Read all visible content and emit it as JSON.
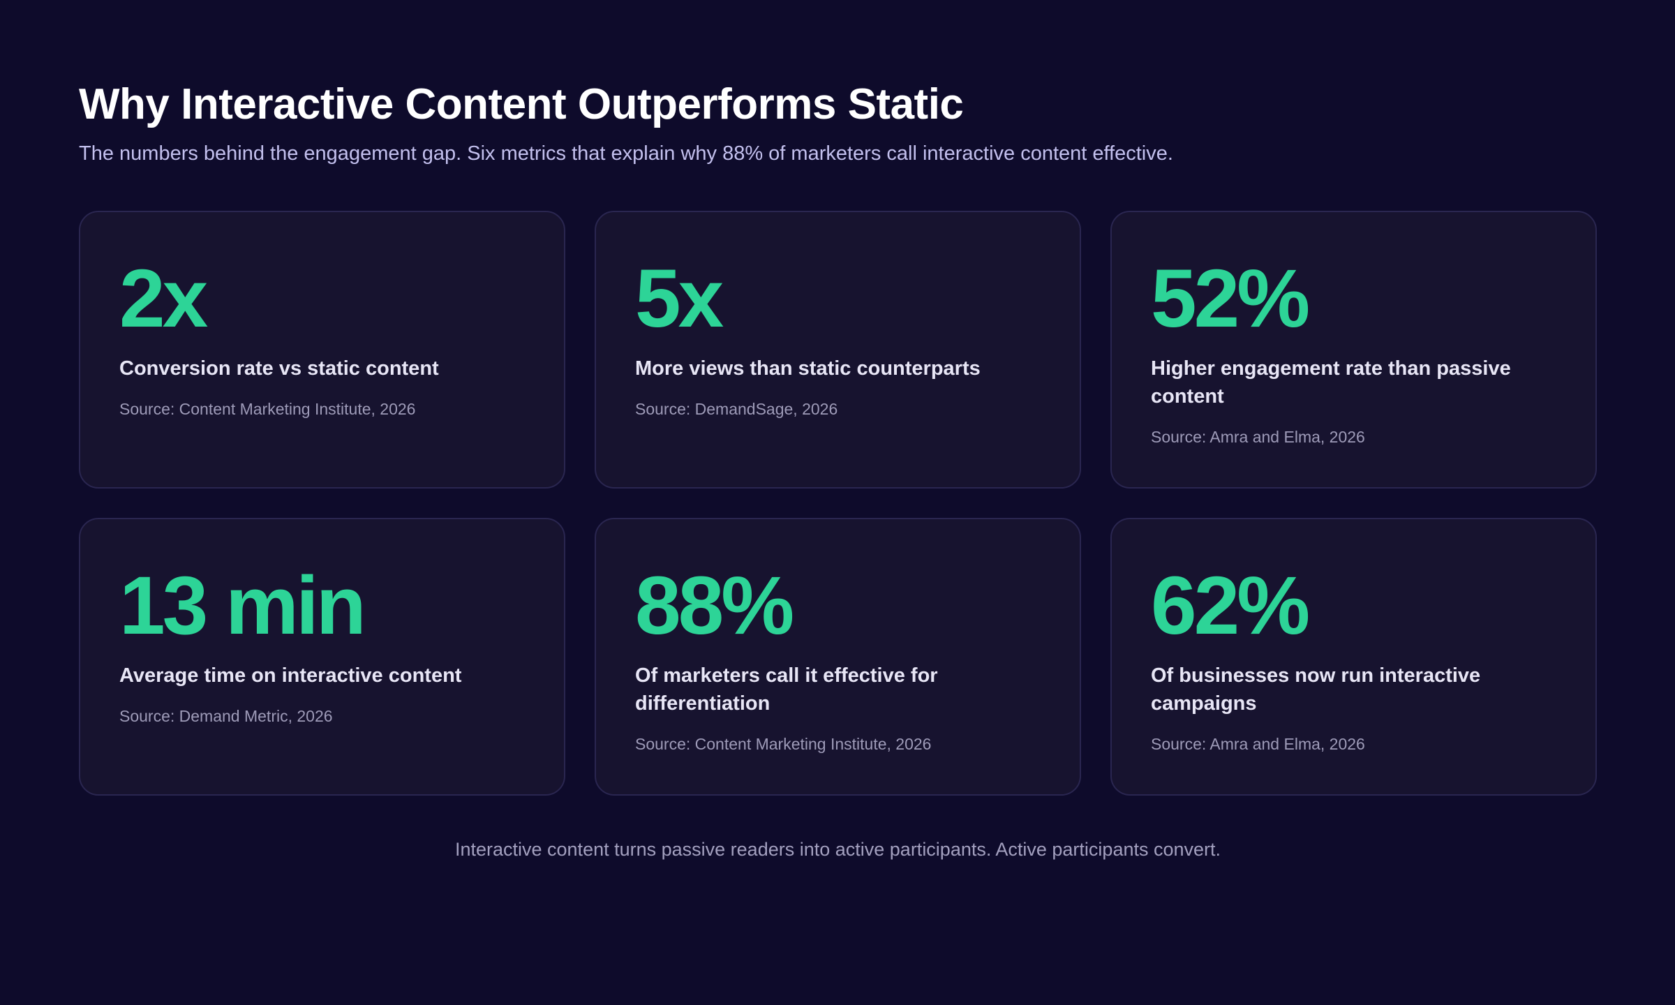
{
  "header": {
    "title": "Why Interactive Content Outperforms Static",
    "subtitle": "The numbers behind the engagement gap. Six metrics that explain why 88% of marketers call interactive content effective."
  },
  "stats": [
    {
      "value": "2x",
      "label": "Conversion rate vs static content",
      "source": "Source: Content Marketing Institute, 2026"
    },
    {
      "value": "5x",
      "label": "More views than static counterparts",
      "source": "Source: DemandSage, 2026"
    },
    {
      "value": "52%",
      "label": "Higher engagement rate than passive content",
      "source": "Source: Amra and Elma, 2026"
    },
    {
      "value": "13 min",
      "label": "Average time on interactive content",
      "source": "Source: Demand Metric, 2026"
    },
    {
      "value": "88%",
      "label": "Of marketers call it effective for differentiation",
      "source": "Source: Content Marketing Institute, 2026"
    },
    {
      "value": "62%",
      "label": "Of businesses now run interactive campaigns",
      "source": "Source: Amra and Elma, 2026"
    }
  ],
  "footer": {
    "note": "Interactive content turns passive readers into active participants. Active participants convert."
  },
  "colors": {
    "background": "#0e0b2b",
    "card": "#17132f",
    "card_border": "#2a2650",
    "accent": "#2dd497",
    "subtitle": "#c3c0ee",
    "muted": "#9e9bb8"
  }
}
